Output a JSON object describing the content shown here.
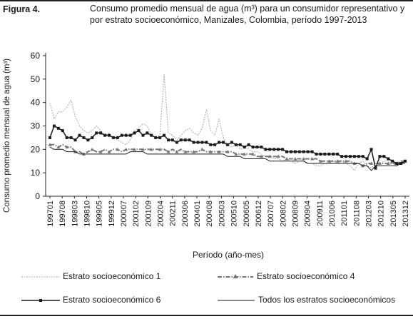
{
  "figure": {
    "label": "Figura 4.",
    "title": "Consumo promedio mensual de agua (m³) para un consumidor representativo y por estrato socioeconómico, Manizales, Colombia, período 1997-2013"
  },
  "chart_data": {
    "type": "line",
    "title": "",
    "xlabel": "Período (año-mes)",
    "ylabel": "Consumo promedio mensual de agua (m³)",
    "ylim": [
      0,
      60
    ],
    "yticks": [
      0,
      10,
      20,
      30,
      40,
      50,
      60
    ],
    "grid": false,
    "legend_position": "bottom",
    "x_tick_labels": [
      "199701",
      "199708",
      "199803",
      "199810",
      "199905",
      "199912",
      "200007",
      "200102",
      "200109",
      "200204",
      "200211",
      "200306",
      "200401",
      "200408",
      "200503",
      "200510",
      "200605",
      "200612",
      "200707",
      "200802",
      "200809",
      "200904",
      "200911",
      "201006",
      "201101",
      "201108",
      "201203",
      "201210",
      "201305",
      "201312"
    ],
    "series": [
      {
        "name": "Estrato socioeconómico 1",
        "style": "dotted-gray",
        "color": "#a8a8a8",
        "values": [
          40,
          33,
          36,
          36,
          38,
          41,
          34,
          30,
          28,
          27,
          28,
          30,
          28,
          26,
          27,
          25,
          24,
          23,
          22,
          24,
          28,
          29,
          31,
          30,
          26,
          25,
          26,
          52,
          27,
          26,
          24,
          26,
          28,
          29,
          27,
          26,
          29,
          37,
          28,
          26,
          33,
          25,
          22,
          21,
          22,
          20,
          21,
          20,
          19,
          19,
          18,
          17,
          17,
          16,
          16,
          15,
          16,
          15,
          14,
          15,
          15,
          14,
          14,
          13,
          13,
          14,
          14,
          15,
          14,
          15,
          14,
          13,
          11,
          14,
          15,
          13,
          12,
          14,
          14,
          15,
          15,
          14,
          13,
          14,
          15
        ]
      },
      {
        "name": "Estrato socioeconómico 4",
        "style": "dash-dot-triangle",
        "color": "#777777",
        "values": [
          22,
          22,
          21,
          22,
          21,
          21,
          19,
          19,
          18,
          19,
          20,
          19,
          19,
          20,
          19,
          20,
          20,
          19,
          20,
          20,
          20,
          20,
          20,
          20,
          20,
          20,
          20,
          20,
          19,
          20,
          19,
          20,
          19,
          19,
          19,
          19,
          20,
          19,
          19,
          19,
          19,
          19,
          19,
          19,
          18,
          18,
          18,
          18,
          18,
          17,
          17,
          17,
          17,
          17,
          17,
          17,
          16,
          16,
          16,
          16,
          16,
          16,
          16,
          16,
          15,
          15,
          15,
          15,
          15,
          15,
          15,
          15,
          14,
          14,
          13,
          14,
          14,
          14,
          14,
          14,
          14,
          14,
          14,
          15,
          15
        ]
      },
      {
        "name": "Estrato socioeconómico 6",
        "style": "solid-square",
        "color": "#1a1a1a",
        "values": [
          25,
          30,
          29,
          28,
          25,
          25,
          24,
          26,
          25,
          24,
          25,
          27,
          27,
          26,
          26,
          25,
          25,
          26,
          26,
          26,
          27,
          28,
          26,
          27,
          26,
          25,
          25,
          26,
          24,
          24,
          23,
          24,
          24,
          24,
          23,
          23,
          23,
          23,
          22,
          22,
          23,
          23,
          22,
          23,
          22,
          22,
          21,
          22,
          21,
          21,
          21,
          20,
          20,
          20,
          20,
          20,
          19,
          19,
          19,
          19,
          19,
          19,
          19,
          18,
          18,
          18,
          18,
          18,
          18,
          17,
          17,
          17,
          17,
          17,
          17,
          16,
          20,
          12,
          17,
          17,
          16,
          15,
          14,
          14,
          15
        ]
      },
      {
        "name": "Todos los estratos socioeconómicos",
        "style": "solid-thin",
        "color": "#1a1a1a",
        "values": [
          21,
          20,
          20,
          20,
          19,
          19,
          19,
          18,
          18,
          18,
          18,
          18,
          18,
          18,
          18,
          18,
          18,
          18,
          18,
          19,
          19,
          19,
          19,
          18,
          18,
          18,
          18,
          18,
          18,
          18,
          18,
          18,
          18,
          18,
          18,
          18,
          18,
          18,
          18,
          18,
          18,
          18,
          17,
          17,
          17,
          17,
          16,
          16,
          16,
          16,
          16,
          16,
          15,
          15,
          15,
          15,
          15,
          15,
          15,
          15,
          15,
          14,
          14,
          14,
          14,
          14,
          14,
          14,
          14,
          14,
          14,
          14,
          14,
          14,
          13,
          13,
          11,
          13,
          13,
          13,
          13,
          13,
          13,
          14,
          14
        ]
      }
    ]
  }
}
